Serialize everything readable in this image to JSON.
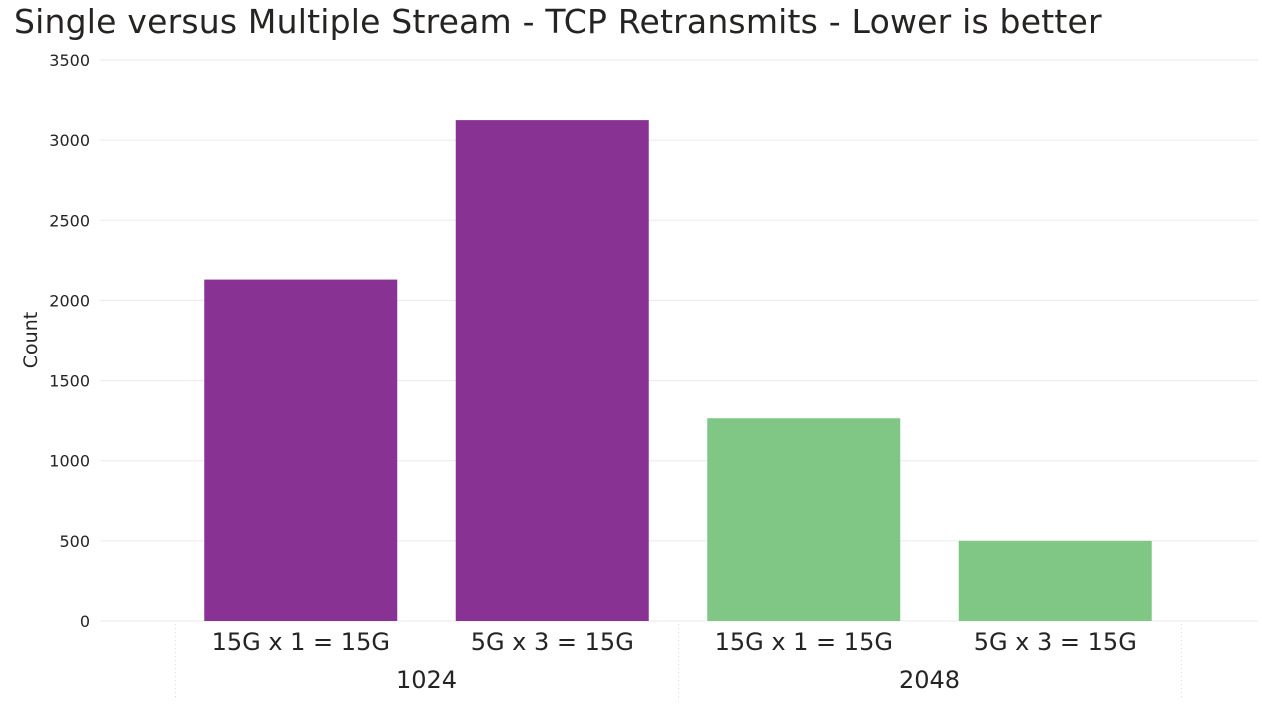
{
  "chart_data": {
    "type": "bar",
    "title": "Single versus Multiple Stream - TCP Retransmits - Lower is better",
    "ylabel": "Count",
    "xlabel": "",
    "ylim": [
      0,
      3500
    ],
    "yticks": [
      0,
      500,
      1000,
      1500,
      2000,
      2500,
      3000,
      3500
    ],
    "grid": true,
    "groups": [
      {
        "label": "1024",
        "color": "#883293",
        "bars": [
          {
            "category": "15G x 1 = 15G",
            "value": 2130
          },
          {
            "category": "5G x 3 = 15G",
            "value": 3125
          }
        ]
      },
      {
        "label": "2048",
        "color": "#80C785",
        "bars": [
          {
            "category": "15G x 1 = 15G",
            "value": 1265
          },
          {
            "category": "5G x 3 = 15G",
            "value": 500
          }
        ]
      }
    ]
  }
}
